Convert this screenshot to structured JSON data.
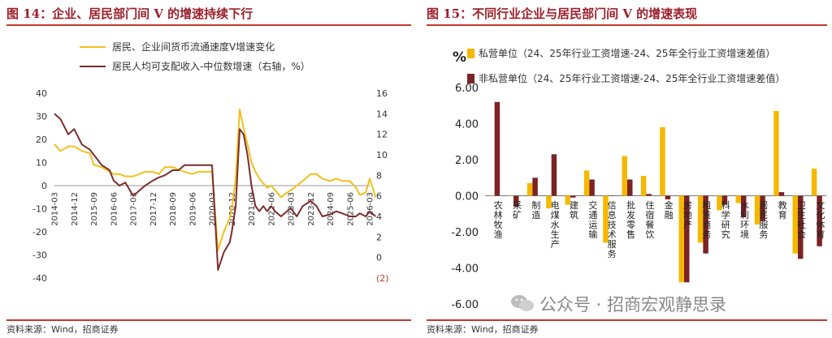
{
  "left": {
    "title": "图 14：企业、居民部门间 V 的增速持续下行",
    "source": "资料来源：Wind，招商证券",
    "chart_data": {
      "type": "line",
      "x_ticks": [
        "2014-03",
        "2014-12",
        "2015-09",
        "2016-06",
        "2017-03",
        "2017-12",
        "2018-09",
        "2019-06",
        "2020-03",
        "2020-12",
        "2021-09",
        "2022-06",
        "2023-03",
        "2023-12",
        "2024-09",
        "2025-06",
        "2026-03"
      ],
      "ylim_left": [
        -40,
        40
      ],
      "yticks_left": [
        "40",
        "30",
        "20",
        "10",
        "0",
        "-10",
        "-20",
        "-30",
        "-40"
      ],
      "ylim_right": [
        -2,
        16
      ],
      "yticks_right": [
        "16",
        "14",
        "12",
        "10",
        "8",
        "6",
        "4",
        "2",
        "0",
        "(2)"
      ],
      "series": [
        {
          "name": "居民、企业间货币流通速度V增速变化",
          "color": "#f2c01c",
          "axis": "left",
          "x": [
            0,
            0.3,
            0.7,
            1,
            1.4,
            1.8,
            2,
            2.4,
            2.8,
            3,
            3.3,
            3.6,
            4,
            4.3,
            4.6,
            5,
            5.3,
            5.6,
            6,
            6.3,
            6.6,
            7,
            7.3,
            7.6,
            8,
            8.3,
            8.6,
            8.9,
            9,
            9.2,
            9.4,
            9.6,
            9.8,
            10,
            10.2,
            10.4,
            10.6,
            10.8,
            11,
            11.2,
            11.5,
            11.8,
            12,
            12.3,
            12.6,
            13,
            13.3,
            13.6,
            14,
            14.3,
            14.6,
            15,
            15.3,
            15.5,
            15.8,
            16,
            16.3
          ],
          "y": [
            18,
            15,
            17,
            17,
            15,
            14,
            9,
            8,
            6,
            5,
            5,
            4,
            4,
            5,
            6,
            6,
            5,
            8,
            8,
            7,
            6,
            5,
            6,
            6,
            6,
            -28,
            -20,
            -14,
            -10,
            3,
            33,
            25,
            18,
            10,
            6,
            3,
            1,
            -1,
            0,
            -2,
            -5,
            -3,
            -2,
            0,
            2,
            5,
            5,
            3,
            2,
            3,
            2,
            2,
            -1,
            -4,
            -3,
            3,
            -5
          ]
        },
        {
          "name": "居民人均可支配收入-中位数增速（右轴，%）",
          "color": "#7b2d2d",
          "axis": "right",
          "x": [
            0,
            0.3,
            0.7,
            1,
            1.4,
            1.8,
            2,
            2.4,
            2.8,
            3,
            3.3,
            3.6,
            4,
            4.3,
            4.6,
            5,
            5.3,
            5.6,
            6,
            6.3,
            6.6,
            7,
            7.3,
            7.6,
            8,
            8.3,
            8.6,
            8.9,
            9,
            9.2,
            9.4,
            9.6,
            9.8,
            10,
            10.2,
            10.4,
            10.6,
            10.8,
            11,
            11.2,
            11.5,
            11.8,
            12,
            12.3,
            12.6,
            13,
            13.3,
            13.6,
            14,
            14.3,
            14.6,
            15,
            15.3,
            15.5,
            15.8,
            16,
            16.3
          ],
          "y": [
            14,
            13.5,
            12,
            12.5,
            11,
            10.5,
            10,
            9,
            8.5,
            7.5,
            7,
            7.3,
            6,
            6.5,
            7,
            7.5,
            7.8,
            8,
            8.5,
            8.5,
            9,
            9,
            9,
            9,
            9,
            -1.2,
            0.5,
            1.5,
            2.5,
            5,
            12.5,
            12,
            10,
            7,
            5,
            4.5,
            5,
            4.5,
            5,
            4.5,
            4,
            4.5,
            4.8,
            4,
            5,
            5.5,
            5,
            4,
            4.2,
            4.5,
            4.3,
            4,
            4,
            4.3,
            4,
            4.5,
            4
          ]
        }
      ]
    }
  },
  "right": {
    "title": "图 15：不同行业企业与居民部门间 V 的增速表现",
    "source": "资料来源：Wind，招商证券",
    "watermark": "公众号 · 招商宏观静思录",
    "chart_data": {
      "type": "bar",
      "ylabel": "%",
      "ylim": [
        -6,
        6
      ],
      "yticks": [
        "6.00",
        "4.00",
        "2.00",
        "0.00",
        "-2.00",
        "-4.00",
        "-6.00"
      ],
      "categories": [
        "农林牧渔",
        "采矿",
        "制造",
        "电煤水生产",
        "建筑",
        "交通运输",
        "信息技术服务",
        "批发零售",
        "住宿餐饮",
        "金融",
        "房地产",
        "租赁商务",
        "科学研究",
        "水利环境",
        "居民服务",
        "教育",
        "卫生社会",
        "文化体育"
      ],
      "series": [
        {
          "name": "私营单位（24、25年行业工资增速-24、25年全行业工资增速差值）",
          "color": "#f5b800",
          "values": [
            0.0,
            0.0,
            0.7,
            -0.7,
            -0.5,
            1.4,
            -2.6,
            2.2,
            1.1,
            3.8,
            -4.8,
            -2.6,
            -0.8,
            -0.4,
            -1.6,
            4.7,
            -3.2,
            1.5
          ]
        },
        {
          "name": "非私营单位（24、25年行业工资增速-24、25年全行业工资增速差值）",
          "color": "#7b2326",
          "values": [
            5.2,
            -0.6,
            1.0,
            2.3,
            -0.1,
            0.9,
            0.0,
            0.9,
            0.1,
            -0.2,
            -4.8,
            -3.2,
            -0.5,
            -1.2,
            -1.4,
            0.2,
            -3.5,
            -2.8
          ]
        }
      ]
    }
  }
}
